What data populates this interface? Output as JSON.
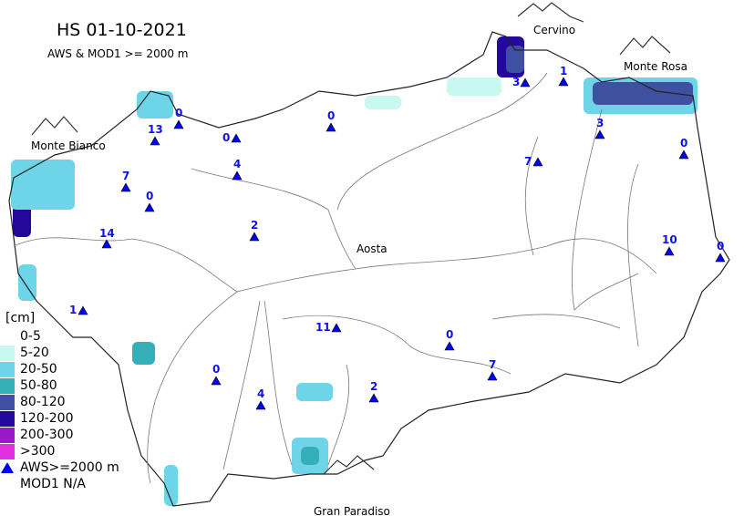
{
  "title": "HS 01-10-2021",
  "subtitle": "AWS & MOD1 >= 2000 m",
  "places": [
    "Monte Bianco",
    "Cervino",
    "Monte Rosa",
    "Gran Paradiso",
    "Aosta"
  ],
  "legend": {
    "unit": "[cm]",
    "classes": [
      {
        "label": "0-5",
        "color": "#ffffff"
      },
      {
        "label": "5-20",
        "color": "#c8f8f0"
      },
      {
        "label": "20-50",
        "color": "#6ed4e8"
      },
      {
        "label": "50-80",
        "color": "#36b0b8"
      },
      {
        "label": "80-120",
        "color": "#4050a0"
      },
      {
        "label": "120-200",
        "color": "#24089c"
      },
      {
        "label": "200-300",
        "color": "#9a18c8"
      },
      {
        "label": ">300",
        "color": "#e030e0"
      }
    ],
    "aws_label": "AWS>=2000 m",
    "mod_label": "MOD1 N/A",
    "aws_color": "#0000ee"
  },
  "stations": [
    "13",
    "0",
    "0",
    "0",
    "4",
    "7",
    "0",
    "14",
    "2",
    "3",
    "1",
    "3",
    "7",
    "0",
    "10",
    "0",
    "1",
    "11",
    "0",
    "7",
    "0",
    "4",
    "2"
  ]
}
